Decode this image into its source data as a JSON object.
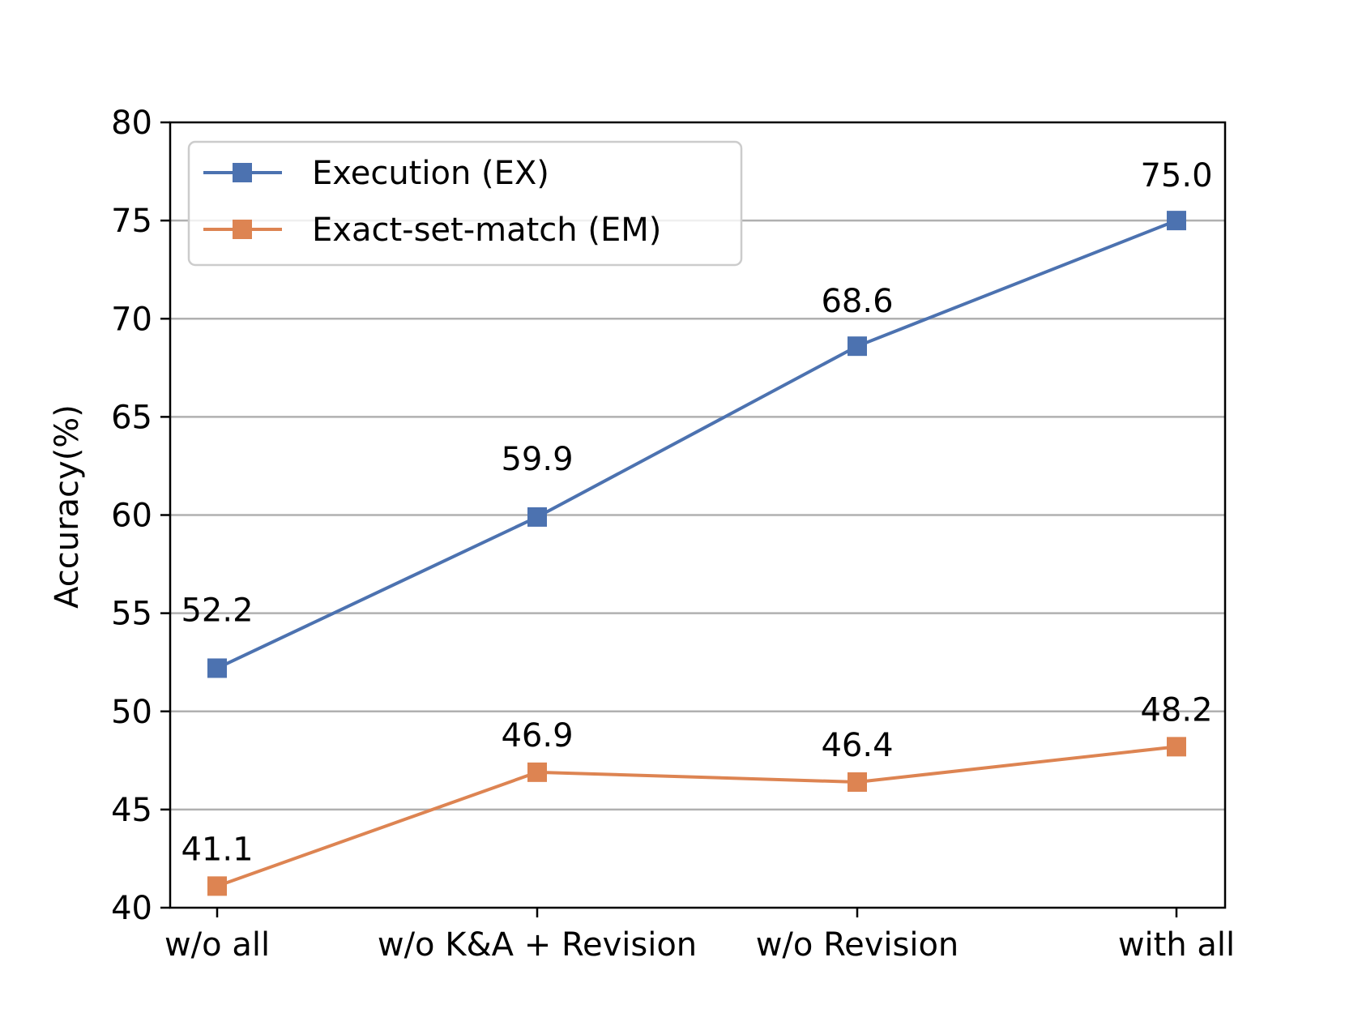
{
  "chart_data": {
    "type": "line",
    "categories": [
      "w/o all",
      "w/o K&A + Revision",
      "w/o Revision",
      "with all"
    ],
    "ylabel": "Accuracy(%)",
    "xlabel": "",
    "ylim": [
      40,
      80
    ],
    "yticks": [
      40,
      45,
      50,
      55,
      60,
      65,
      70,
      75,
      80
    ],
    "grid": "horizontal",
    "legend_position": "top-left",
    "series": [
      {
        "name": "Execution (EX)",
        "color": "#4c72b0",
        "values": [
          52.2,
          59.9,
          68.6,
          75.0
        ],
        "labels": [
          "52.2",
          "59.9",
          "68.6",
          "75.0"
        ]
      },
      {
        "name": "Exact-set-match (EM)",
        "color": "#dd8452",
        "values": [
          41.1,
          46.9,
          46.4,
          48.2
        ],
        "labels": [
          "41.1",
          "46.9",
          "46.4",
          "48.2"
        ]
      }
    ]
  }
}
